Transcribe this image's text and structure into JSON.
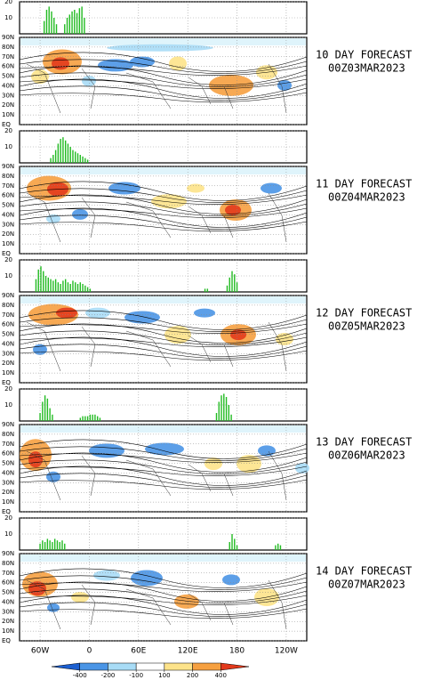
{
  "chart_data": {
    "type": "bar",
    "xlim": [
      -85,
      265
    ],
    "xticks": [
      {
        "value": -60,
        "label": "60W"
      },
      0,
      {
        "value": 60,
        "label": "60E"
      },
      {
        "value": 120,
        "label": "120E"
      },
      180,
      {
        "value": 240,
        "label": "120W"
      }
    ],
    "ylim": [
      0,
      20
    ],
    "yticks": [
      10,
      20
    ],
    "lat_lim": [
      0,
      90
    ],
    "lat_ticks": [
      {
        "value": 90,
        "label": "90N"
      },
      {
        "value": 80,
        "label": "80N"
      },
      {
        "value": 70,
        "label": "70N"
      },
      {
        "value": 60,
        "label": "60N"
      },
      {
        "value": 50,
        "label": "50N"
      },
      {
        "value": 40,
        "label": "40N"
      },
      {
        "value": 30,
        "label": "30N"
      },
      {
        "value": 20,
        "label": "20N"
      },
      {
        "value": 10,
        "label": "10N"
      },
      {
        "value": 0,
        "label": "EQ"
      }
    ],
    "color": "#22bb22",
    "panels": [
      {
        "label": "10 DAY FORECAST",
        "time": "00Z03MAR2023",
        "x": [
          -55,
          -52,
          -49,
          -46,
          -43,
          -40,
          -30,
          -27,
          -24,
          -21,
          -18,
          -15,
          -12,
          -9,
          -6
        ],
        "values": [
          8,
          15,
          17,
          14,
          10,
          6,
          6,
          10,
          12,
          14,
          15,
          13,
          16,
          17,
          10
        ]
      },
      {
        "label": "11 DAY FORECAST",
        "time": "00Z04MAR2023",
        "x": [
          -47,
          -44,
          -41,
          -38,
          -35,
          -32,
          -29,
          -26,
          -23,
          -20,
          -17,
          -14,
          -11,
          -8,
          -5,
          -2
        ],
        "values": [
          3,
          5,
          8,
          12,
          15,
          16,
          14,
          12,
          10,
          8,
          7,
          6,
          5,
          4,
          3,
          2
        ]
      },
      {
        "label": "12 DAY FORECAST",
        "time": "00Z05MAR2023",
        "x": [
          -65,
          -62,
          -59,
          -56,
          -53,
          -50,
          -47,
          -44,
          -41,
          -38,
          -35,
          -32,
          -29,
          -26,
          -23,
          -20,
          -17,
          -14,
          -11,
          -8,
          -5,
          -2,
          1,
          141,
          144,
          168,
          171,
          174,
          177,
          180
        ],
        "values": [
          8,
          14,
          16,
          13,
          10,
          9,
          8,
          7,
          8,
          6,
          5,
          7,
          8,
          6,
          5,
          7,
          6,
          5,
          6,
          5,
          4,
          3,
          2,
          2,
          2,
          4,
          9,
          13,
          11,
          6
        ]
      },
      {
        "label": "13 DAY FORECAST",
        "time": "00Z06MAR2023",
        "x": [
          -60,
          -57,
          -54,
          -51,
          -48,
          -45,
          -11,
          -8,
          -5,
          -2,
          1,
          4,
          7,
          10,
          13,
          155,
          158,
          161,
          164,
          167,
          170,
          173
        ],
        "values": [
          5,
          12,
          16,
          14,
          8,
          4,
          2,
          3,
          3,
          3,
          4,
          4,
          4,
          3,
          2,
          5,
          12,
          16,
          17,
          15,
          10,
          4
        ]
      },
      {
        "label": "14 DAY FORECAST",
        "time": "00Z07MAR2023",
        "x": [
          -60,
          -57,
          -54,
          -51,
          -48,
          -45,
          -42,
          -39,
          -36,
          -33,
          -30,
          171,
          174,
          177,
          180,
          227,
          230,
          233
        ],
        "values": [
          4,
          6,
          5,
          7,
          6,
          5,
          7,
          6,
          5,
          6,
          4,
          5,
          10,
          7,
          3,
          3,
          4,
          3
        ]
      }
    ],
    "colorbar": {
      "ticks": [
        -400,
        -200,
        -100,
        100,
        200,
        400
      ],
      "colors": [
        "#1c5fd0",
        "#4a95e6",
        "#a8dcf6",
        "#ffffff",
        "#fde38a",
        "#f6a040",
        "#e23a1c"
      ]
    }
  }
}
